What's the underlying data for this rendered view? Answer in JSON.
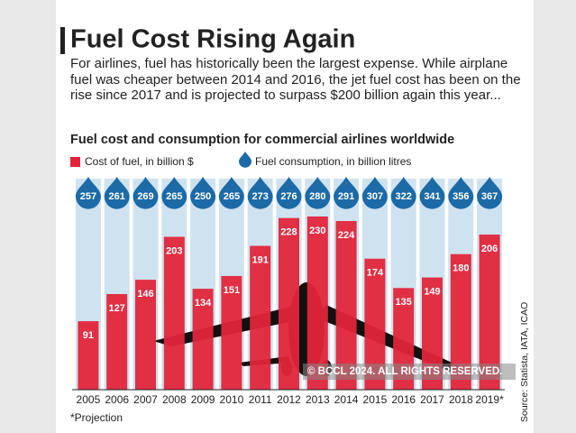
{
  "chart_data": {
    "type": "bar",
    "title": "Fuel Cost Rising Again",
    "subtitle": "For airlines, fuel has historically been the largest expense. While airplane fuel was cheaper between 2014 and 2016, the jet fuel cost has been on the rise since 2017 and is projected to surpass $200 billion again this year...",
    "chart_title": "Fuel cost and consumption for commercial airlines worldwide",
    "categories": [
      "2005",
      "2006",
      "2007",
      "2008",
      "2009",
      "2010",
      "2011",
      "2012",
      "2013",
      "2014",
      "2015",
      "2016",
      "2017",
      "2018",
      "2019*"
    ],
    "series": [
      {
        "name": "Cost of fuel, in billion $",
        "color": "#e2253a",
        "values": [
          91,
          127,
          146,
          203,
          134,
          151,
          191,
          228,
          230,
          224,
          174,
          135,
          149,
          180,
          206
        ]
      },
      {
        "name": "Fuel consumption, in billion litres",
        "color": "#1c6aa6",
        "values": [
          257,
          261,
          269,
          265,
          250,
          265,
          273,
          276,
          280,
          291,
          307,
          322,
          341,
          356,
          367
        ]
      }
    ],
    "footnote": "*Projection",
    "source": "Source: Statista, IATA, ICAO",
    "watermark": "© BCCL 2024. ALL RIGHTS RESERVED."
  }
}
